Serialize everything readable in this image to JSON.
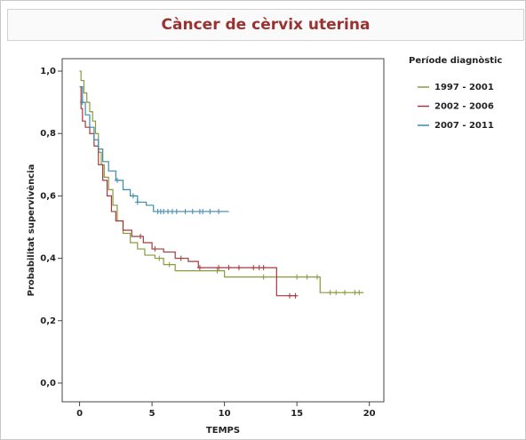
{
  "chart_data": {
    "type": "step",
    "title": "Càncer de cèrvix uterina",
    "x_label": "TEMPS",
    "y_label": "Probabilitat supervivència",
    "legend_title": "Període diagnòstic",
    "xlim": [
      -1.2,
      21
    ],
    "ylim": [
      -0.06,
      1.04
    ],
    "xticks": [
      0,
      5,
      10,
      15,
      20
    ],
    "yticks": [
      {
        "value": 0,
        "label": "0,0"
      },
      {
        "value": 0.2,
        "label": "0,2"
      },
      {
        "value": 0.4,
        "label": "0,4"
      },
      {
        "value": 0.6,
        "label": "0,6"
      },
      {
        "value": 0.8,
        "label": "0,8"
      },
      {
        "value": 1,
        "label": "1,0"
      }
    ],
    "legend": "right",
    "series": [
      {
        "name": "1997 - 2001",
        "color": "#8a9a3c",
        "x": [
          0,
          0.1,
          0.3,
          0.5,
          0.7,
          0.9,
          1.1,
          1.3,
          1.5,
          1.7,
          2.0,
          2.3,
          2.6,
          3.0,
          3.5,
          4.0,
          4.5,
          5.2,
          5.8,
          6.6,
          10.0,
          16.6,
          19.6
        ],
        "values": [
          1.0,
          0.97,
          0.93,
          0.9,
          0.87,
          0.84,
          0.8,
          0.74,
          0.7,
          0.66,
          0.62,
          0.57,
          0.52,
          0.48,
          0.45,
          0.43,
          0.41,
          0.4,
          0.38,
          0.36,
          0.34,
          0.29,
          0.29
        ],
        "censored": [
          5.5,
          6.2,
          9.5,
          12.7,
          15.0,
          15.7,
          16.4,
          17.3,
          17.7,
          18.3,
          19.0,
          19.3
        ]
      },
      {
        "name": "2002 - 2006",
        "color": "#a33a3a",
        "x": [
          0,
          0.1,
          0.2,
          0.4,
          0.7,
          1.0,
          1.3,
          1.6,
          1.9,
          2.2,
          2.5,
          3.0,
          3.6,
          4.4,
          5.0,
          5.8,
          6.6,
          7.5,
          8.2,
          13.6,
          15.0
        ],
        "values": [
          0.95,
          0.88,
          0.84,
          0.82,
          0.8,
          0.76,
          0.7,
          0.65,
          0.6,
          0.55,
          0.52,
          0.49,
          0.47,
          0.45,
          0.43,
          0.42,
          0.4,
          0.39,
          0.37,
          0.28,
          0.28
        ],
        "censored": [
          4.2,
          5.2,
          7.0,
          8.3,
          9.6,
          10.3,
          11.0,
          12.0,
          12.4,
          12.7,
          14.5,
          14.9
        ]
      },
      {
        "name": "2007 - 2011",
        "color": "#3a8ab0",
        "x": [
          0,
          0.2,
          0.4,
          0.7,
          1.0,
          1.3,
          1.6,
          2.0,
          2.5,
          3.0,
          3.5,
          4.0,
          4.6,
          5.1,
          10.3
        ],
        "values": [
          0.95,
          0.9,
          0.86,
          0.82,
          0.78,
          0.75,
          0.71,
          0.68,
          0.65,
          0.62,
          0.6,
          0.58,
          0.57,
          0.55,
          0.55
        ],
        "censored": [
          0.2,
          2.6,
          3.7,
          4.0,
          5.4,
          5.6,
          5.8,
          6.1,
          6.4,
          6.7,
          7.3,
          7.8,
          8.3,
          8.5,
          9.0,
          9.6
        ]
      }
    ]
  }
}
